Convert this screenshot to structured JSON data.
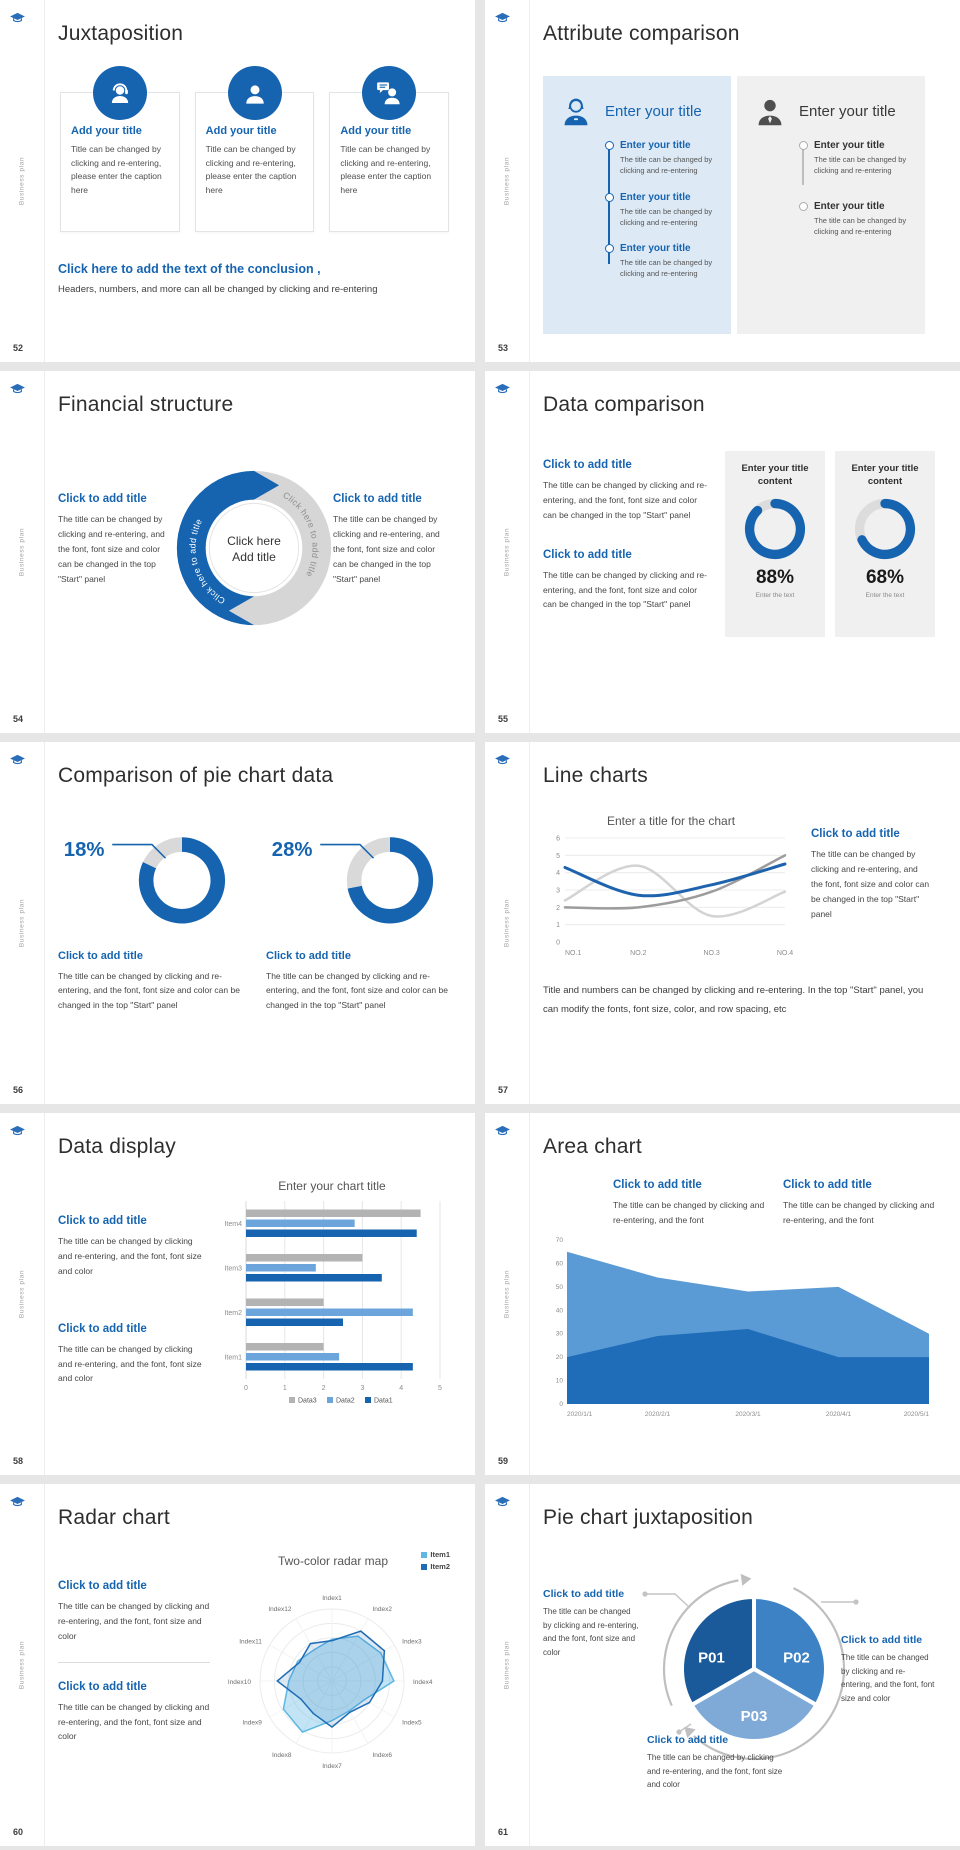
{
  "brand": {
    "vertical_label": "Business plan",
    "accent": "#1664b0",
    "logo_icon": "graduation-cap-icon"
  },
  "slides": {
    "s52": {
      "page_number": "52",
      "title": "Juxtaposition",
      "cards": [
        {
          "icon": "agent-headset-icon",
          "title": "Add your title",
          "body": "Title can be changed by clicking and re-entering, please enter the caption here"
        },
        {
          "icon": "person-icon",
          "title": "Add your title",
          "body": "Title can be changed by clicking and re-entering, please enter the caption here"
        },
        {
          "icon": "person-chat-icon",
          "title": "Add your title",
          "body": "Title can be changed by clicking and re-entering, please enter the caption here"
        }
      ],
      "conclusion_title": "Click here to add the text of the conclusion ,",
      "conclusion_body": "Headers, numbers, and more can all be changed by clicking and re-entering"
    },
    "s53": {
      "page_number": "53",
      "title": "Attribute comparison",
      "left_panel": {
        "icon": "businesswoman-icon",
        "title": "Enter your title",
        "items": [
          {
            "title": "Enter your title",
            "body": "The title can be changed by clicking and re-entering"
          },
          {
            "title": "Enter your title",
            "body": "The title can be changed by clicking and re-entering"
          },
          {
            "title": "Enter your title",
            "body": "The title can be changed by clicking and re-entering"
          }
        ]
      },
      "right_panel": {
        "icon": "businessman-icon",
        "title": "Enter your title",
        "items": [
          {
            "title": "Enter your title",
            "body": "The title can be changed by clicking and re-entering"
          },
          {
            "title": "Enter your title",
            "body": "The title can be changed by clicking and re-entering"
          }
        ]
      }
    },
    "s54": {
      "page_number": "54",
      "title": "Financial structure",
      "left_block": {
        "title": "Click to add title",
        "body": "The title can be changed by clicking and re-entering, and the font, font size and color can be changed in the top \"Start\" panel"
      },
      "right_block": {
        "title": "Click to add title",
        "body": "The title can be changed by clicking and re-entering, and the font, font size and color can be changed in the top \"Start\" panel"
      },
      "cycle": {
        "arc_left_label": "Click here to add title",
        "arc_right_label": "Click here to add title",
        "center_line1": "Click here",
        "center_line2": "Add title"
      }
    },
    "s55": {
      "page_number": "55",
      "title": "Data comparison",
      "blocks": [
        {
          "title": "Click to add title",
          "body": "The title can be changed by clicking and re-entering, and the font, font size and color can be changed in the top \"Start\" panel"
        },
        {
          "title": "Click to add title",
          "body": "The title can be changed by clicking and re-entering, and the font, font size and color can be changed in the top \"Start\" panel"
        }
      ],
      "gauges": [
        {
          "header": "Enter your title content",
          "value_label": "88%",
          "caption": "Enter the text"
        },
        {
          "header": "Enter your title content",
          "value_label": "68%",
          "caption": "Enter the text"
        }
      ]
    },
    "s56": {
      "page_number": "56",
      "title": "Comparison of pie chart data",
      "donut_blocks": [
        {
          "title": "Click to add title",
          "body": "The title can be changed by clicking and re-entering, and the font, font size and color can be changed in the top \"Start\" panel"
        },
        {
          "title": "Click to add title",
          "body": "The title can be changed by clicking and re-entering, and the font, font size and color can be changed in the top \"Start\" panel"
        }
      ]
    },
    "s57": {
      "page_number": "57",
      "title": "Line charts",
      "side_block": {
        "title": "Click to add title",
        "body": "The title can be changed by clicking and re-entering, and the font, font size and color can be changed in the top \"Start\" panel"
      },
      "footer": "Title and numbers can be changed by clicking and re-entering. In the top \"Start\" panel, you can modify the fonts, font size, color, and row spacing, etc"
    },
    "s58": {
      "page_number": "58",
      "title": "Data display",
      "blocks": [
        {
          "title": "Click to add title",
          "body": "The title can be changed by clicking and re-entering, and the font, font size and color"
        },
        {
          "title": "Click to add title",
          "body": "The title can be changed by clicking and re-entering, and the font, font size and color"
        }
      ]
    },
    "s59": {
      "page_number": "59",
      "title": "Area chart",
      "blocks": [
        {
          "title": "Click to add title",
          "body": "The title can be changed by clicking and re-entering, and the font"
        },
        {
          "title": "Click to add title",
          "body": "The title can be changed by clicking and re-entering, and the font"
        }
      ]
    },
    "s60": {
      "page_number": "60",
      "title": "Radar chart",
      "blocks": [
        {
          "title": "Click to add title",
          "body": "The title can be changed by clicking and re-entering, and the font, font size and color"
        },
        {
          "title": "Click to add title",
          "body": "The title can be changed by clicking and re-entering, and the font, font size and color"
        }
      ]
    },
    "s61": {
      "page_number": "61",
      "title": "Pie chart juxtaposition",
      "blocks": [
        {
          "title": "Click to add title",
          "body": "The title can be changed by clicking and re-entering, and the font, font size and color"
        },
        {
          "title": "Click to add title",
          "body": "The title can be changed by clicking and re-entering, and the font, font size and color"
        },
        {
          "title": "Click to add title",
          "body": "The title can be changed by clicking and re-entering, and the font, font size and color"
        }
      ]
    }
  },
  "chart_data": [
    {
      "name": "title-content-gauge-1",
      "slide": "55",
      "type": "pie",
      "variant": "gauge",
      "title": "Enter your title content",
      "labels": [
        "value",
        "remainder"
      ],
      "values": [
        88,
        12
      ],
      "annotation": "88%",
      "caption": "Enter the text",
      "colors": [
        "#1664b0",
        "#dcdcdc"
      ]
    },
    {
      "name": "title-content-gauge-2",
      "slide": "55",
      "type": "pie",
      "variant": "gauge",
      "title": "Enter your title content",
      "labels": [
        "value",
        "remainder"
      ],
      "values": [
        68,
        32
      ],
      "annotation": "68%",
      "caption": "Enter the text",
      "colors": [
        "#1664b0",
        "#dcdcdc"
      ]
    },
    {
      "name": "pie-compare-left",
      "slide": "56",
      "type": "pie",
      "variant": "donut-callout",
      "labels": [
        "main",
        "highlight"
      ],
      "values": [
        82,
        18
      ],
      "annotation": "18%",
      "colors": [
        "#1664b0",
        "#d9d9d9"
      ]
    },
    {
      "name": "pie-compare-right",
      "slide": "56",
      "type": "pie",
      "variant": "donut-callout",
      "labels": [
        "main",
        "highlight"
      ],
      "values": [
        72,
        28
      ],
      "annotation": "28%",
      "colors": [
        "#1664b0",
        "#d9d9d9"
      ]
    },
    {
      "name": "line-chart",
      "slide": "57",
      "type": "line",
      "title": "Enter a title for the chart",
      "categories": [
        "NO.1",
        "NO.2",
        "NO.3",
        "NO.4"
      ],
      "ylim": [
        0,
        6
      ],
      "yticks": [
        0,
        1,
        2,
        3,
        4,
        5,
        6
      ],
      "grid": "horizontal",
      "legend_position": "none",
      "series": [
        {
          "name": "series-blue",
          "color": "#1e63ad",
          "width": 3,
          "values": [
            4.3,
            2.7,
            3.3,
            4.5
          ]
        },
        {
          "name": "series-gray",
          "color": "#9c9c9c",
          "width": 2.5,
          "values": [
            2.0,
            2.0,
            2.9,
            5.0
          ]
        },
        {
          "name": "series-light-gray",
          "color": "#d3d3d3",
          "width": 2.5,
          "values": [
            2.4,
            4.4,
            1.5,
            2.9
          ]
        }
      ]
    },
    {
      "name": "grouped-hbar",
      "slide": "58",
      "type": "bar",
      "orientation": "horizontal",
      "title": "Enter your chart title",
      "categories": [
        "Item1",
        "Item2",
        "Item3",
        "Item4"
      ],
      "xlim": [
        0,
        5
      ],
      "xticks": [
        0,
        1,
        2,
        3,
        4,
        5
      ],
      "grid": "vertical",
      "legend_position": "bottom",
      "legend_order": [
        "Data3",
        "Data2",
        "Data1"
      ],
      "series": [
        {
          "name": "Data1",
          "color": "#1664b0",
          "values": [
            4.3,
            2.5,
            3.5,
            4.4
          ]
        },
        {
          "name": "Data2",
          "color": "#6ba5dc",
          "values": [
            2.4,
            4.3,
            1.8,
            2.8
          ]
        },
        {
          "name": "Data3",
          "color": "#b3b3b3",
          "values": [
            2.0,
            2.0,
            3.0,
            4.5
          ]
        }
      ]
    },
    {
      "name": "area-chart",
      "slide": "59",
      "type": "area",
      "categories": [
        "2020/1/1",
        "2020/2/1",
        "2020/3/1",
        "2020/4/1",
        "2020/5/1"
      ],
      "ylim": [
        0,
        70
      ],
      "yticks": [
        0,
        10,
        20,
        30,
        40,
        50,
        60,
        70
      ],
      "grid": "off",
      "series": [
        {
          "name": "upper-area",
          "color": "#5b9bd5",
          "values": [
            65,
            54,
            48,
            50,
            30
          ]
        },
        {
          "name": "lower-area",
          "color": "#1f6cb8",
          "values": [
            20,
            29,
            32,
            20,
            20
          ]
        }
      ]
    },
    {
      "name": "two-color-radar",
      "slide": "60",
      "type": "radar",
      "title": "Two-color radar map",
      "rmax": 1,
      "rings": 5,
      "legend": [
        "Item1",
        "Item2"
      ],
      "axes": [
        "Index1",
        "Index2",
        "Index3",
        "Index4",
        "Index5",
        "Index6",
        "Index7",
        "Index8",
        "Index9",
        "Index10",
        "Index11",
        "Index12"
      ],
      "series": [
        {
          "name": "Item1",
          "color": "#5fb7e3",
          "values": [
            0.58,
            0.72,
            0.78,
            0.86,
            0.52,
            0.48,
            0.55,
            0.82,
            0.78,
            0.6,
            0.55,
            0.5
          ]
        },
        {
          "name": "Item2",
          "color": "#1f6cb4",
          "values": [
            0.56,
            0.8,
            0.84,
            0.7,
            0.6,
            0.5,
            0.64,
            0.52,
            0.5,
            0.76,
            0.52,
            0.6
          ]
        }
      ]
    },
    {
      "name": "pie-trisection",
      "slide": "61",
      "type": "pie",
      "variant": "trisection",
      "labels": [
        "P01",
        "P02",
        "P03"
      ],
      "values": [
        33.3,
        33.3,
        33.4
      ],
      "colors": [
        "#1a5a9b",
        "#3c82c4",
        "#7fa9d6"
      ]
    }
  ]
}
